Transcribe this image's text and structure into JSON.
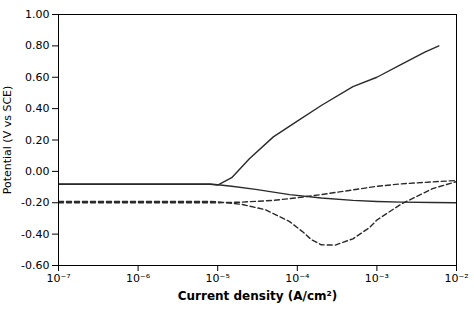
{
  "chart_data": {
    "type": "line",
    "xlabel": "Current density (A/cm²)",
    "ylabel": "Potential (V vs SCE)",
    "log": "x",
    "grid": false,
    "color": "#2a2a2a",
    "xlim": [
      1e-07,
      0.01
    ],
    "ylim": [
      -0.6,
      1.0
    ],
    "xticks": [
      {
        "value": 1e-07,
        "label": "10⁻⁷"
      },
      {
        "value": 1e-06,
        "label": "10⁻⁶"
      },
      {
        "value": 1e-05,
        "label": "10⁻⁵"
      },
      {
        "value": 0.0001,
        "label": "10⁻⁴"
      },
      {
        "value": 0.001,
        "label": "10⁻³"
      },
      {
        "value": 0.01,
        "label": "10⁻²"
      }
    ],
    "yticks": [
      {
        "value": -0.6,
        "label": "-0.60"
      },
      {
        "value": -0.4,
        "label": "-0.40"
      },
      {
        "value": -0.2,
        "label": "-0.20"
      },
      {
        "value": 0,
        "label": "0.00"
      },
      {
        "value": 0.2,
        "label": "0.20"
      },
      {
        "value": 0.4,
        "label": "0.40"
      },
      {
        "value": 0.6,
        "label": "0.60"
      },
      {
        "value": 0.8,
        "label": "0.80"
      },
      {
        "value": 1,
        "label": "1.00"
      }
    ],
    "series": [
      {
        "line_style": "solid",
        "x": [
          1e-07,
          3e-07,
          1e-06,
          3e-06,
          8e-06,
          1e-05,
          1.5e-05,
          2.5e-05,
          5e-05,
          0.0001,
          0.0002,
          0.0005,
          0.001,
          0.002,
          0.004,
          0.006
        ],
        "values": [
          -0.083,
          -0.083,
          -0.083,
          -0.083,
          -0.083,
          -0.087,
          -0.04,
          0.08,
          0.22,
          0.32,
          0.42,
          0.54,
          0.6,
          0.68,
          0.76,
          0.8
        ]
      },
      {
        "line_style": "solid",
        "x": [
          1e-07,
          3e-07,
          1e-06,
          3e-06,
          8e-06,
          1e-05,
          1.5e-05,
          3e-05,
          8e-05,
          0.0002,
          0.0005,
          0.001,
          0.002,
          0.005,
          0.01
        ],
        "values": [
          -0.08,
          -0.08,
          -0.08,
          -0.08,
          -0.08,
          -0.085,
          -0.095,
          -0.115,
          -0.148,
          -0.17,
          -0.185,
          -0.192,
          -0.196,
          -0.198,
          -0.2
        ]
      },
      {
        "line_style": "dashed",
        "x": [
          1e-07,
          3e-07,
          1e-06,
          3e-06,
          8e-06,
          1e-05,
          2e-05,
          4e-05,
          8e-05,
          0.00012,
          0.00015,
          0.0002,
          0.0003,
          0.0005,
          0.0008,
          0.001,
          0.002,
          0.005,
          0.01
        ],
        "values": [
          -0.192,
          -0.192,
          -0.192,
          -0.192,
          -0.192,
          -0.194,
          -0.21,
          -0.245,
          -0.32,
          -0.39,
          -0.435,
          -0.468,
          -0.47,
          -0.43,
          -0.36,
          -0.31,
          -0.21,
          -0.11,
          -0.065
        ]
      },
      {
        "line_style": "dashed",
        "x": [
          1e-07,
          3e-07,
          1e-06,
          3e-06,
          8e-06,
          1e-05,
          2e-05,
          5e-05,
          0.0001,
          0.0002,
          0.0005,
          0.001,
          0.002,
          0.005,
          0.01
        ],
        "values": [
          -0.2,
          -0.2,
          -0.2,
          -0.2,
          -0.2,
          -0.2,
          -0.196,
          -0.185,
          -0.168,
          -0.148,
          -0.118,
          -0.095,
          -0.08,
          -0.067,
          -0.058
        ]
      }
    ]
  }
}
